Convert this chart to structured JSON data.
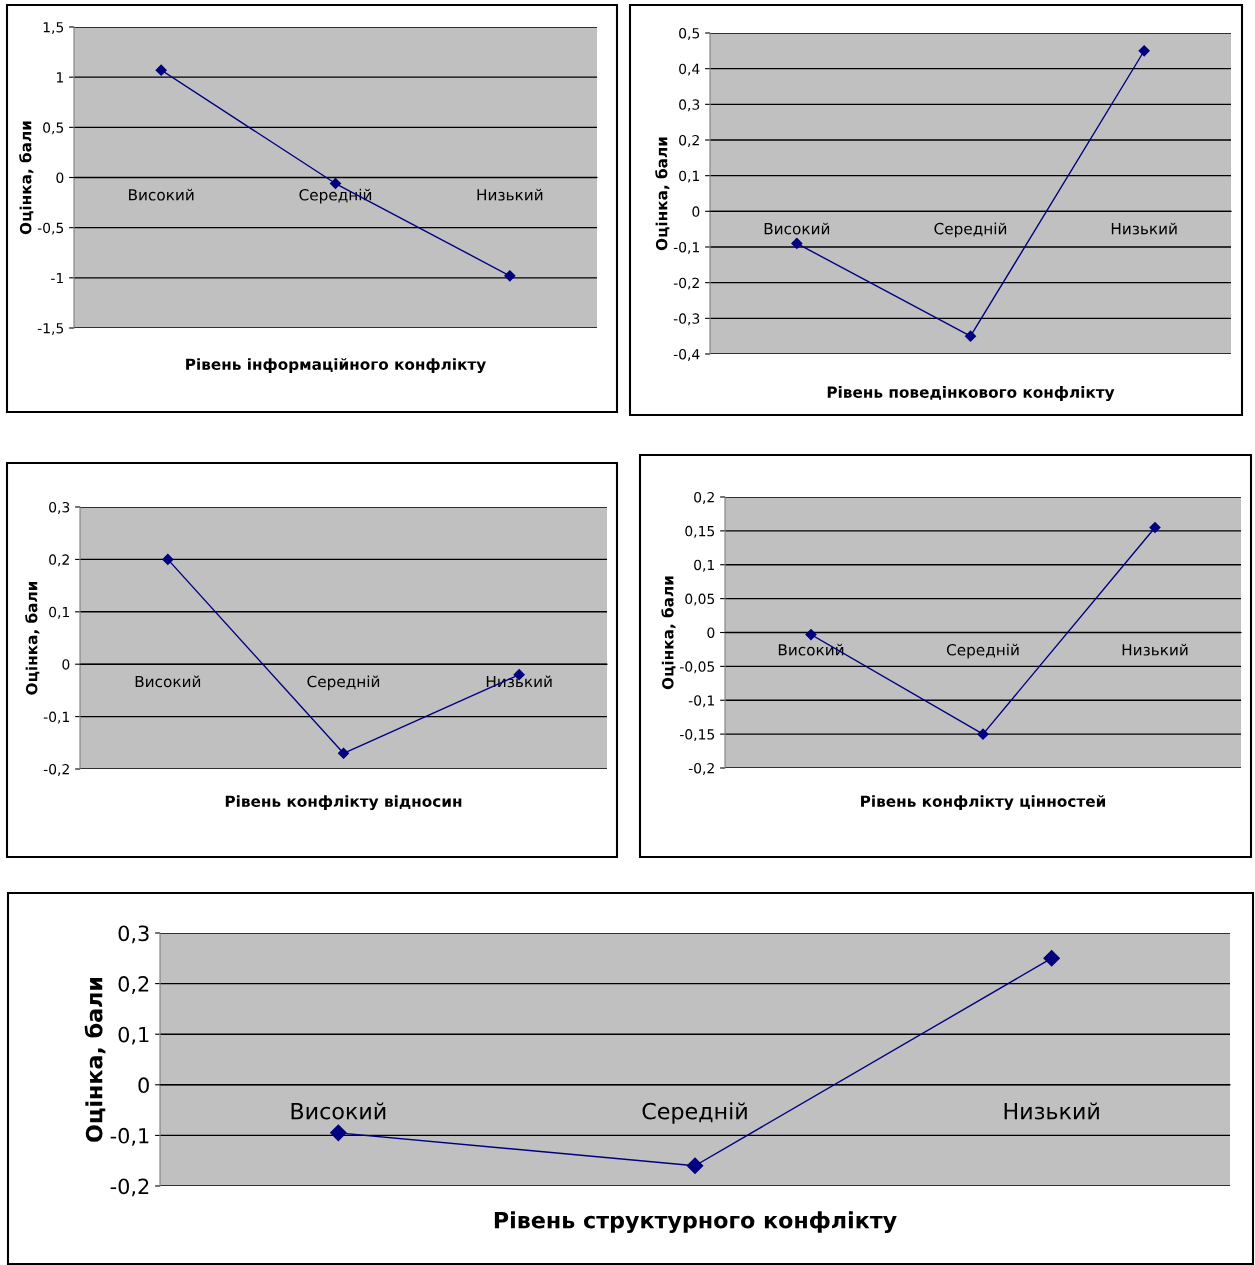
{
  "chart_data": [
    {
      "type": "line",
      "xlabel": "Рівень інформаційного конфлікту",
      "ylabel": "Оцінка, бали",
      "categories": [
        "Високий",
        "Середній",
        "Низький"
      ],
      "series": [
        {
          "color": "#000080",
          "values": [
            1.07,
            -0.06,
            -0.98
          ]
        }
      ],
      "ylim": [
        -1.5,
        1.5
      ],
      "yticks": [
        {
          "value": -1.5,
          "label": "-1,5"
        },
        {
          "value": -1,
          "label": "-1"
        },
        {
          "value": -0.5,
          "label": "-0,5"
        },
        {
          "value": 0,
          "label": "0"
        },
        {
          "value": 0.5,
          "label": "0,5"
        },
        {
          "value": 1,
          "label": "1"
        },
        {
          "value": 1.5,
          "label": "1,5"
        }
      ],
      "grid": "y",
      "marker": "diamond",
      "line_style": "solid"
    },
    {
      "type": "line",
      "xlabel": "Рівень поведінкового конфлікту",
      "ylabel": "Оцінка, бали",
      "categories": [
        "Високий",
        "Середній",
        "Низький"
      ],
      "series": [
        {
          "color": "#000080",
          "values": [
            -0.09,
            -0.35,
            0.45
          ]
        }
      ],
      "ylim": [
        -0.4,
        0.5
      ],
      "yticks": [
        {
          "value": -0.4,
          "label": "-0,4"
        },
        {
          "value": -0.3,
          "label": "-0,3"
        },
        {
          "value": -0.2,
          "label": "-0,2"
        },
        {
          "value": -0.1,
          "label": "-0,1"
        },
        {
          "value": 0,
          "label": "0"
        },
        {
          "value": 0.1,
          "label": "0,1"
        },
        {
          "value": 0.2,
          "label": "0,2"
        },
        {
          "value": 0.3,
          "label": "0,3"
        },
        {
          "value": 0.4,
          "label": "0,4"
        },
        {
          "value": 0.5,
          "label": "0,5"
        }
      ],
      "grid": "y",
      "marker": "diamond",
      "line_style": "solid"
    },
    {
      "type": "line",
      "xlabel": "Рівень конфлікту відносин",
      "ylabel": "Оцінка, бали",
      "categories": [
        "Високий",
        "Середній",
        "Низький"
      ],
      "series": [
        {
          "color": "#000080",
          "values": [
            0.2,
            -0.17,
            -0.02
          ]
        }
      ],
      "ylim": [
        -0.2,
        0.3
      ],
      "yticks": [
        {
          "value": -0.2,
          "label": "-0,2"
        },
        {
          "value": -0.1,
          "label": "-0,1"
        },
        {
          "value": 0,
          "label": "0"
        },
        {
          "value": 0.1,
          "label": "0,1"
        },
        {
          "value": 0.2,
          "label": "0,2"
        },
        {
          "value": 0.3,
          "label": "0,3"
        }
      ],
      "grid": "y",
      "marker": "diamond",
      "line_style": "solid"
    },
    {
      "type": "line",
      "xlabel": "Рівень конфлікту цінностей",
      "ylabel": "Оцінка, бали",
      "categories": [
        "Високий",
        "Середній",
        "Низький"
      ],
      "series": [
        {
          "color": "#000080",
          "values": [
            -0.003,
            -0.15,
            0.155
          ]
        }
      ],
      "ylim": [
        -0.2,
        0.2
      ],
      "yticks": [
        {
          "value": -0.2,
          "label": "-0,2"
        },
        {
          "value": -0.15,
          "label": "-0,15"
        },
        {
          "value": -0.1,
          "label": "-0,1"
        },
        {
          "value": -0.05,
          "label": "-0,05"
        },
        {
          "value": 0,
          "label": "0"
        },
        {
          "value": 0.05,
          "label": "0,05"
        },
        {
          "value": 0.1,
          "label": "0,1"
        },
        {
          "value": 0.15,
          "label": "0,15"
        },
        {
          "value": 0.2,
          "label": "0,2"
        }
      ],
      "grid": "y",
      "marker": "diamond",
      "line_style": "solid"
    },
    {
      "type": "line",
      "xlabel": "Рівень структурного конфлікту",
      "ylabel": "Оцінка, бали",
      "categories": [
        "Високий",
        "Середній",
        "Низький"
      ],
      "series": [
        {
          "color": "#000080",
          "values": [
            -0.095,
            -0.16,
            0.25
          ]
        }
      ],
      "ylim": [
        -0.2,
        0.3
      ],
      "yticks": [
        {
          "value": -0.2,
          "label": "-0,2"
        },
        {
          "value": -0.1,
          "label": "-0,1"
        },
        {
          "value": 0,
          "label": "0"
        },
        {
          "value": 0.1,
          "label": "0,1"
        },
        {
          "value": 0.2,
          "label": "0,2"
        },
        {
          "value": 0.3,
          "label": "0,3"
        }
      ],
      "grid": "y",
      "marker": "diamond",
      "line_style": "solid"
    }
  ]
}
